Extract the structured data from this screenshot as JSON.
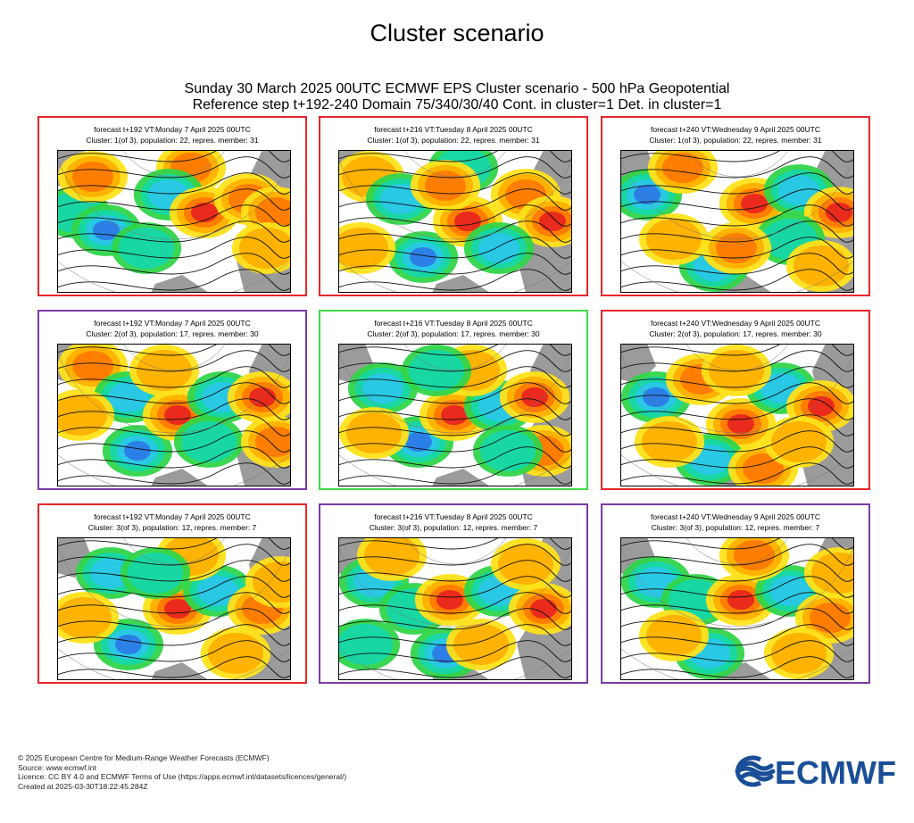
{
  "title": "Cluster scenario",
  "subtitle_line1": "Sunday 30 March 2025 00UTC ECMWF EPS Cluster scenario - 500 hPa Geopotential",
  "subtitle_line2": "Reference step t+192-240 Domain 75/340/30/40 Cont. in cluster=1 Det. in cluster=1",
  "colors": {
    "red": "#e8262b",
    "purple": "#7b3aa8",
    "green": "#3ddc4a",
    "ocean": "#ffffff",
    "land": "#9b9b9b"
  },
  "panels": [
    {
      "line1": "forecast t+192 VT:Monday 7 April 2025 00UTC",
      "line2": "Cluster: 1(of 3), population: 22, repres. member: 31",
      "frame": "red"
    },
    {
      "line1": "forecast t+216 VT:Tuesday 8 April 2025 00UTC",
      "line2": "Cluster: 1(of 3), population: 22, repres. member: 31",
      "frame": "red"
    },
    {
      "line1": "forecast t+240 VT:Wednesday 9 April 2025 00UTC",
      "line2": "Cluster: 1(of 3), population: 22, repres. member: 31",
      "frame": "red"
    },
    {
      "line1": "forecast t+192 VT:Monday 7 April 2025 00UTC",
      "line2": "Cluster: 2(of 3), population: 17, repres. member: 30",
      "frame": "purple"
    },
    {
      "line1": "forecast t+216 VT:Tuesday 8 April 2025 00UTC",
      "line2": "Cluster: 2(of 3), population: 17, repres. member: 30",
      "frame": "green"
    },
    {
      "line1": "forecast t+240 VT:Wednesday 9 April 2025 00UTC",
      "line2": "Cluster: 2(of 3), population: 17, repres. member: 30",
      "frame": "red"
    },
    {
      "line1": "forecast t+192 VT:Monday 7 April 2025 00UTC",
      "line2": "Cluster: 3(of 3), population: 12, repres. member: 7",
      "frame": "red"
    },
    {
      "line1": "forecast t+216 VT:Tuesday 8 April 2025 00UTC",
      "line2": "Cluster: 3(of 3), population: 12, repres. member: 7",
      "frame": "purple"
    },
    {
      "line1": "forecast t+240 VT:Wednesday 9 April 2025 00UTC",
      "line2": "Cluster: 3(of 3), population: 12, repres. member: 7",
      "frame": "purple"
    }
  ],
  "footer": {
    "line1": "© 2025 European Centre for Medium-Range Weather Forecasts (ECMWF)",
    "line2": "Source: www.ecmwf.int",
    "line3": "Licence: CC BY 4.0 and ECMWF Terms of Use (https://apps.ecmwf.int/datasets/licences/general/)",
    "line4": "Created at 2025-03-30T18:22:45.284Z"
  },
  "logo_text": "ECMWF",
  "logo_color": "#1a4e96"
}
